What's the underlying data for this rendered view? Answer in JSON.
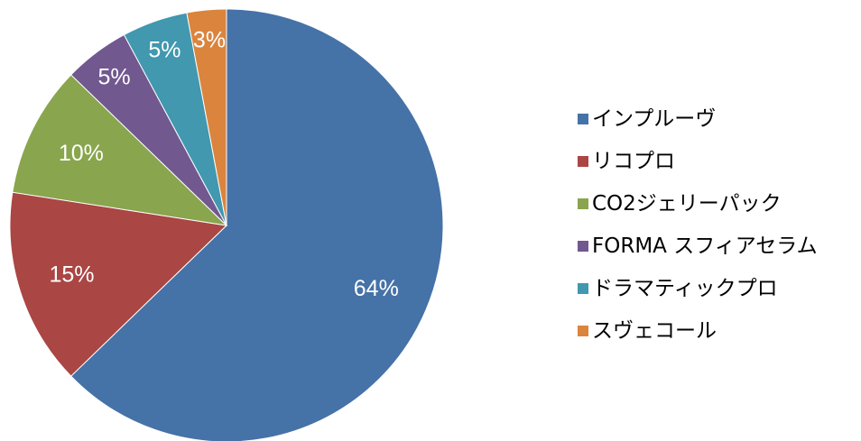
{
  "chart_data": {
    "type": "pie",
    "start_angle_deg": 0,
    "direction": "clockwise",
    "legend_position": "right",
    "slices": [
      {
        "label": "インプルーヴ",
        "value": 64,
        "value_label": "64%",
        "color": "#4572A7"
      },
      {
        "label": "リコプロ",
        "value": 15,
        "value_label": "15%",
        "color": "#AA4643"
      },
      {
        "label": "CO2ジェリーパック",
        "value": 10,
        "value_label": "10%",
        "color": "#89A54E"
      },
      {
        "label": "FORMA スフィアセラム",
        "value": 5,
        "value_label": "5%",
        "color": "#71588F"
      },
      {
        "label": "ドラマティックプロ",
        "value": 5,
        "value_label": "5%",
        "color": "#4198AF"
      },
      {
        "label": "スヴェコール",
        "value": 3,
        "value_label": "3%",
        "color": "#DB843D"
      }
    ]
  }
}
